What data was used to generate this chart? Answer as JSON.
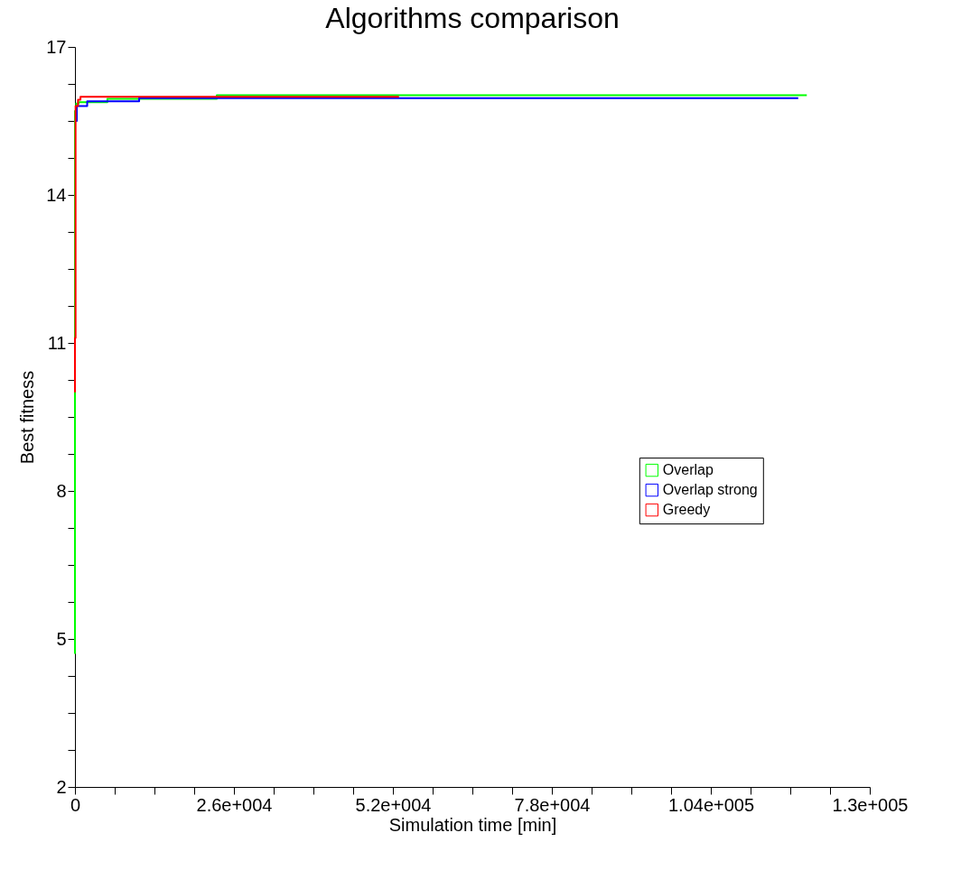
{
  "chart_data": {
    "type": "step",
    "title": "Algorithms comparison",
    "xlabel": "Simulation time [min]",
    "ylabel": "Best fitness",
    "xlim": [
      0,
      130000
    ],
    "xticks": [
      0,
      {
        "value": 6500,
        "label": null
      },
      {
        "value": 13000,
        "label": null
      },
      {
        "value": 19500,
        "label": null
      },
      {
        "value": 26000,
        "label": "2.6e+004"
      },
      {
        "value": 32500,
        "label": null
      },
      {
        "value": 39000,
        "label": null
      },
      {
        "value": 45500,
        "label": null
      },
      {
        "value": 52000,
        "label": "5.2e+004"
      },
      {
        "value": 58500,
        "label": null
      },
      {
        "value": 65000,
        "label": null
      },
      {
        "value": 71500,
        "label": null
      },
      {
        "value": 78000,
        "label": "7.8e+004"
      },
      {
        "value": 84500,
        "label": null
      },
      {
        "value": 91000,
        "label": null
      },
      {
        "value": 97500,
        "label": null
      },
      {
        "value": 104000,
        "label": "1.04e+005"
      },
      {
        "value": 110500,
        "label": null
      },
      {
        "value": 117000,
        "label": null
      },
      {
        "value": 123500,
        "label": null
      },
      {
        "value": 130000,
        "label": "1.3e+005"
      }
    ],
    "ylim": [
      2,
      17
    ],
    "yticks": [
      2,
      {
        "value": 2.75,
        "label": null
      },
      {
        "value": 3.5,
        "label": null
      },
      {
        "value": 4.25,
        "label": null
      },
      5,
      {
        "value": 5.75,
        "label": null
      },
      {
        "value": 6.5,
        "label": null
      },
      {
        "value": 7.25,
        "label": null
      },
      8,
      {
        "value": 8.75,
        "label": null
      },
      {
        "value": 9.5,
        "label": null
      },
      {
        "value": 10.25,
        "label": null
      },
      11,
      {
        "value": 11.75,
        "label": null
      },
      {
        "value": 12.5,
        "label": null
      },
      {
        "value": 13.25,
        "label": null
      },
      14,
      {
        "value": 14.75,
        "label": null
      },
      {
        "value": 15.5,
        "label": null
      },
      {
        "value": 16.25,
        "label": null
      },
      17
    ],
    "grid": false,
    "legend": "right",
    "marker": "none",
    "line_style": "solid",
    "series": [
      {
        "name": "Overlap",
        "color": "#00ff00",
        "x": [
          0,
          0,
          0,
          200,
          600,
          5300,
          23200,
          119700
        ],
        "values": [
          4.7,
          14.2,
          15.7,
          15.85,
          15.88,
          15.95,
          16.02,
          16.02
        ]
      },
      {
        "name": "Overlap strong",
        "color": "#0000ff",
        "x": [
          0,
          300,
          2000,
          10500,
          118300
        ],
        "values": [
          15.5,
          15.8,
          15.9,
          15.96,
          15.96
        ]
      },
      {
        "name": "Greedy",
        "color": "#ff0000",
        "x": [
          0,
          0,
          100,
          500,
          900,
          53000
        ],
        "values": [
          10,
          11.1,
          15.8,
          15.93,
          15.99,
          15.99
        ]
      }
    ]
  }
}
